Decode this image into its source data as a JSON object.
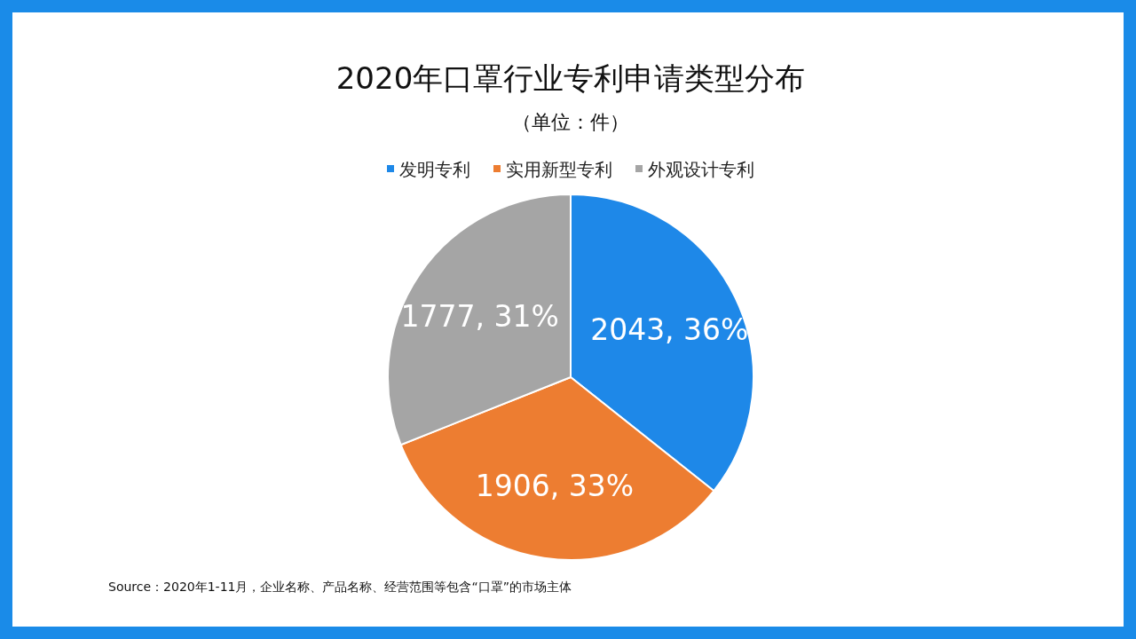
{
  "chart_data": {
    "type": "pie",
    "title": "2020年口罩行业专利申请类型分布",
    "subtitle": "（单位：件）",
    "categories": [
      "发明专利",
      "实用新型专利",
      "外观设计专利"
    ],
    "values": [
      2043,
      1906,
      1777
    ],
    "colors": [
      "#1e88e8",
      "#ed7d31",
      "#a5a5a5"
    ],
    "value_labels": [
      "2043, 36%",
      "1906, 33%",
      "1777, 31%"
    ],
    "legend": "top",
    "annotations": [
      "Source：2020年1-11月，企业名称、产品名称、经营范围等包含“口罩”的市场主体"
    ]
  }
}
